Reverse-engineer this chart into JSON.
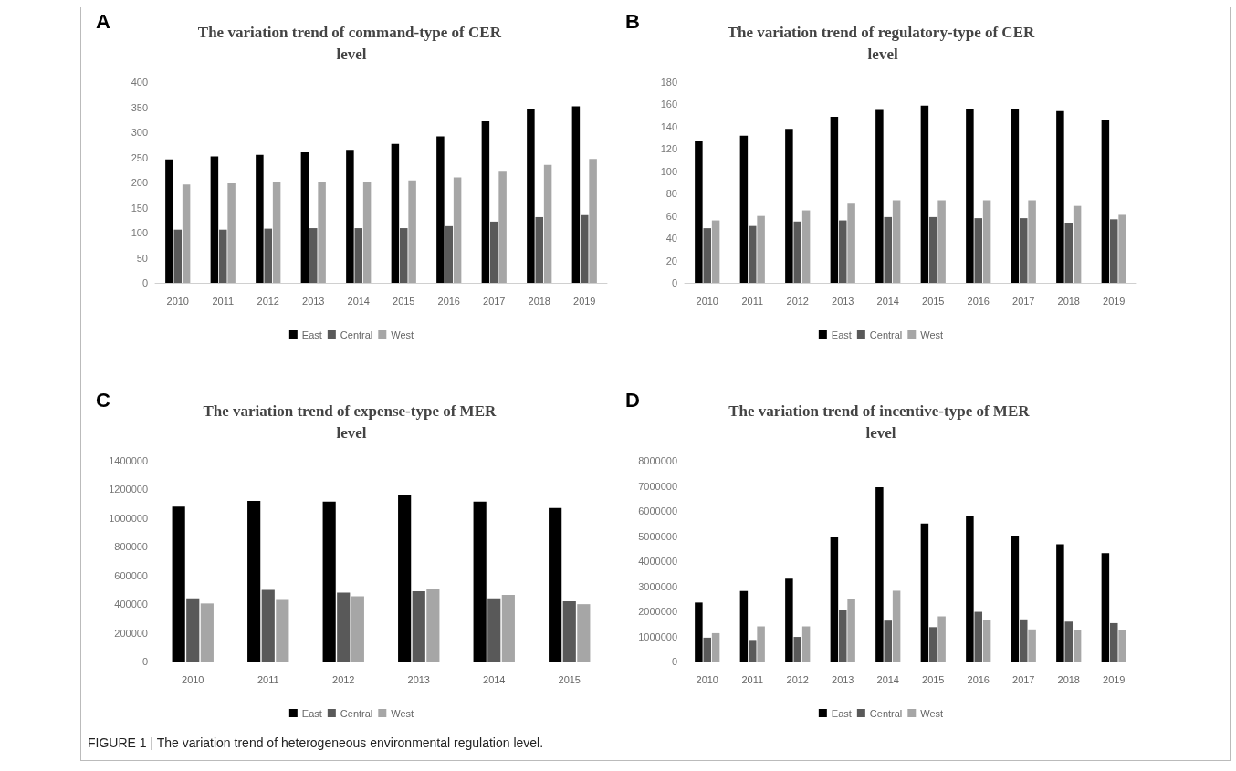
{
  "chart_data": [
    {
      "type": "bar",
      "title": "The variation trend of command-type of CER level",
      "annotations": [
        "A"
      ],
      "categories": [
        "2010",
        "2011",
        "2012",
        "2013",
        "2014",
        "2015",
        "2016",
        "2017",
        "2018",
        "2019"
      ],
      "ylim": [
        0,
        400
      ],
      "yticks": [
        0,
        50,
        100,
        150,
        200,
        250,
        300,
        350,
        400
      ],
      "grid": false,
      "legend": "bottom",
      "series": [
        {
          "name": "East",
          "color": "#000000",
          "values": [
            246,
            252,
            255,
            260,
            265,
            277,
            292,
            322,
            347,
            352
          ]
        },
        {
          "name": "Central",
          "color": "#595959",
          "values": [
            106,
            106,
            108,
            109,
            109,
            109,
            113,
            122,
            131,
            135
          ]
        },
        {
          "name": "West",
          "color": "#a6a6a6",
          "values": [
            196,
            198,
            200,
            201,
            202,
            204,
            210,
            223,
            235,
            247
          ]
        }
      ]
    },
    {
      "type": "bar",
      "title": "The variation trend of regulatory-type of CER level",
      "annotations": [
        "B"
      ],
      "categories": [
        "2010",
        "2011",
        "2012",
        "2013",
        "2014",
        "2015",
        "2016",
        "2017",
        "2018",
        "2019"
      ],
      "ylim": [
        0,
        180
      ],
      "yticks": [
        0,
        20,
        40,
        60,
        80,
        100,
        120,
        140,
        160,
        180
      ],
      "grid": false,
      "legend": "bottom",
      "series": [
        {
          "name": "East",
          "color": "#000000",
          "values": [
            127,
            132,
            138,
            149,
            155,
            159,
            156,
            156,
            154,
            146
          ]
        },
        {
          "name": "Central",
          "color": "#595959",
          "values": [
            49,
            51,
            55,
            56,
            59,
            59,
            58,
            58,
            54,
            57
          ]
        },
        {
          "name": "West",
          "color": "#a6a6a6",
          "values": [
            56,
            60,
            65,
            71,
            74,
            74,
            74,
            74,
            69,
            61
          ]
        }
      ]
    },
    {
      "type": "bar",
      "title": "The variation trend of expense-type of MER level",
      "annotations": [
        "C",
        "FIGURE 1 | The variation trend of heterogeneous environmental regulation level."
      ],
      "categories": [
        "2010",
        "2011",
        "2012",
        "2013",
        "2014",
        "2015"
      ],
      "ylim": [
        0,
        1400000
      ],
      "yticks": [
        0,
        200000,
        400000,
        600000,
        800000,
        1000000,
        1200000,
        1400000
      ],
      "grid": false,
      "legend": "bottom",
      "series": [
        {
          "name": "East",
          "color": "#000000",
          "values": [
            1080000,
            1120000,
            1115000,
            1160000,
            1115000,
            1070000
          ]
        },
        {
          "name": "Central",
          "color": "#595959",
          "values": [
            440000,
            500000,
            480000,
            490000,
            440000,
            420000
          ]
        },
        {
          "name": "West",
          "color": "#a6a6a6",
          "values": [
            405000,
            430000,
            455000,
            505000,
            465000,
            400000
          ]
        }
      ]
    },
    {
      "type": "bar",
      "title": "The variation trend of incentive-type of MER level",
      "annotations": [
        "D"
      ],
      "categories": [
        "2010",
        "2011",
        "2012",
        "2013",
        "2014",
        "2015",
        "2016",
        "2017",
        "2018",
        "2019"
      ],
      "ylim": [
        0,
        8000000
      ],
      "yticks": [
        0,
        1000000,
        2000000,
        3000000,
        4000000,
        5000000,
        6000000,
        7000000,
        8000000
      ],
      "grid": false,
      "legend": "bottom",
      "series": [
        {
          "name": "East",
          "color": "#000000",
          "values": [
            2350000,
            2810000,
            3300000,
            4950000,
            6950000,
            5500000,
            5820000,
            5020000,
            4670000,
            4320000
          ]
        },
        {
          "name": "Central",
          "color": "#595959",
          "values": [
            950000,
            860000,
            980000,
            2060000,
            1630000,
            1370000,
            1980000,
            1680000,
            1590000,
            1530000
          ]
        },
        {
          "name": "West",
          "color": "#a6a6a6",
          "values": [
            1130000,
            1400000,
            1400000,
            2500000,
            2820000,
            1800000,
            1670000,
            1280000,
            1250000,
            1250000
          ]
        }
      ]
    }
  ]
}
